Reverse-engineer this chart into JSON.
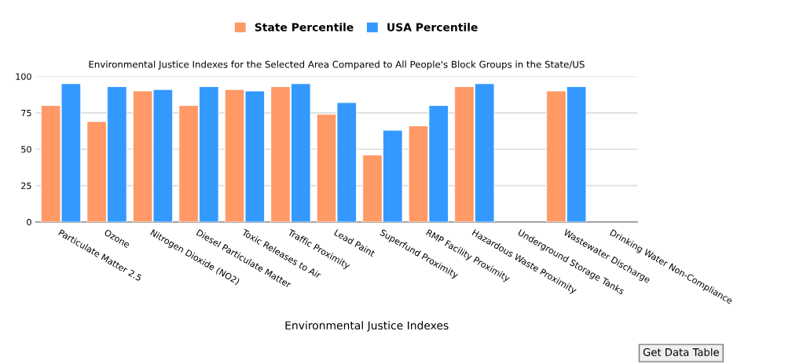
{
  "chart_data": {
    "type": "bar",
    "title": "Environmental Justice Indexes for the Selected Area Compared to All People's Block Groups in the State/US",
    "xlabel": "Environmental Justice Indexes",
    "categories": [
      "Particulate Matter 2.5",
      "Ozone",
      "Nitrogen Dioxide (NO2)",
      "Diesel Particulate Matter",
      "Toxic Releases to Air",
      "Traffic Proximity",
      "Lead Paint",
      "Superfund Proximity",
      "RMP Facility Proximity",
      "Hazardous Waste Proximity",
      "Underground Storage Tanks",
      "Wastewater Discharge",
      "Drinking Water Non-Compliance"
    ],
    "series": [
      {
        "name": "State Percentile",
        "color": "#ff9966",
        "values": [
          80,
          69,
          90,
          80,
          91,
          93,
          74,
          46,
          66,
          93,
          null,
          90,
          null
        ]
      },
      {
        "name": "USA Percentile",
        "color": "#3399ff",
        "values": [
          95,
          93,
          91,
          93,
          90,
          95,
          82,
          63,
          80,
          95,
          null,
          93,
          null
        ]
      }
    ],
    "ylim": [
      0,
      100
    ],
    "yticks": [
      0,
      25,
      50,
      75,
      100
    ],
    "grid": "y",
    "legend": "top",
    "annotations": [
      "Get Data Table"
    ]
  }
}
